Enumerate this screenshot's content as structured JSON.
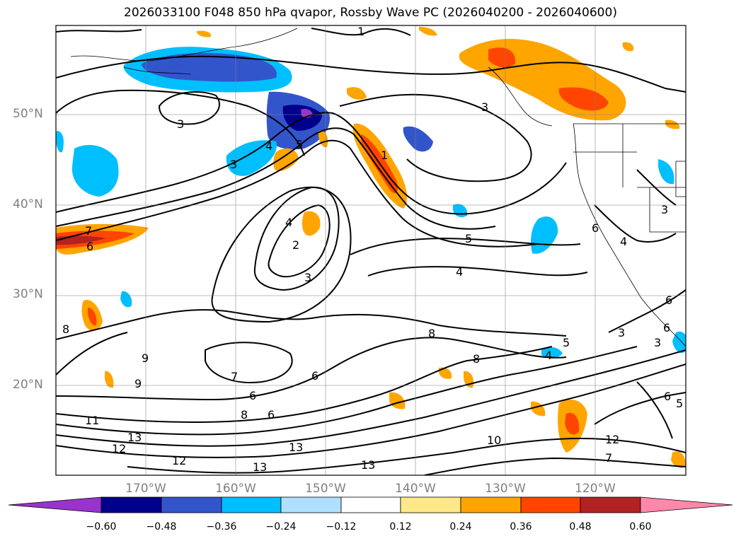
{
  "title": "2026033100 F048 850 hPa qvapor, Rossby Wave PC (2026040200 - 2026040600)",
  "latitude_labels": [
    "50°N",
    "40°N",
    "30°N",
    "20°N"
  ],
  "longitude_labels": [
    "170°W",
    "160°W",
    "150°W",
    "140°W",
    "130°W",
    "120°W"
  ],
  "colorbar": {
    "tick_labels": [
      "−0.60",
      "−0.48",
      "−0.36",
      "−0.24",
      "−0.12",
      "0.12",
      "0.24",
      "0.36",
      "0.48",
      "0.60"
    ],
    "colors": [
      "#9933cc",
      "#00008b",
      "#3355cc",
      "#00bfff",
      "#b0e0ff",
      "#ffffff",
      "#ffe88a",
      "#ffa500",
      "#ff4500",
      "#b22222",
      "#ff88aa"
    ]
  },
  "contour_labels": [
    "1",
    "3",
    "3",
    "4",
    "5",
    "1",
    "7",
    "6",
    "2",
    "3",
    "4",
    "5",
    "4",
    "3",
    "8",
    "8",
    "9",
    "7",
    "6",
    "6",
    "8",
    "6",
    "9",
    "11",
    "13",
    "12",
    "13",
    "12",
    "13",
    "13",
    "10",
    "12",
    "7",
    "8",
    "5",
    "4",
    "3",
    "3",
    "6",
    "6",
    "5",
    "4",
    "6",
    "3",
    "6"
  ]
}
